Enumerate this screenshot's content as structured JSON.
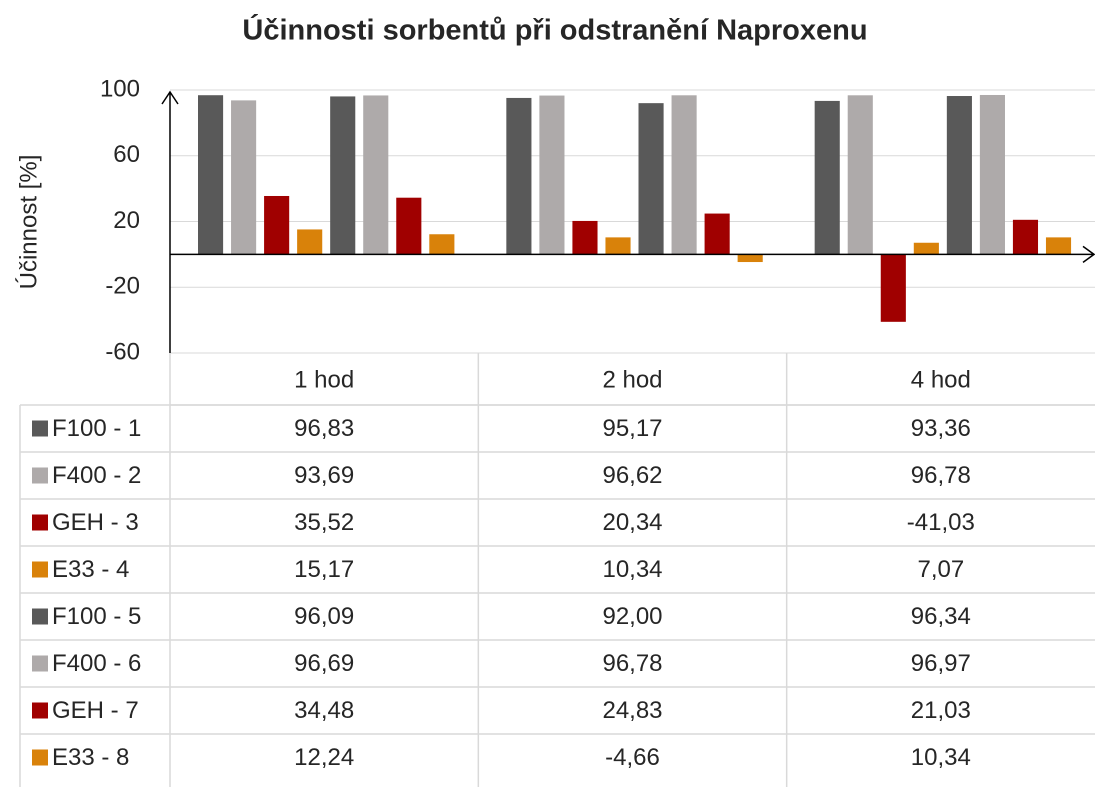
{
  "chart_data": {
    "type": "bar",
    "title": "Účinnosti sorbentů při odstranění Naproxenu",
    "y_label": "Účinnost [%]",
    "categories": [
      "1 hod",
      "2 hod",
      "4 hod"
    ],
    "ylim": [
      -60,
      100
    ],
    "yticks": [
      -60,
      -20,
      20,
      60,
      100
    ],
    "grid": true,
    "series": [
      {
        "name": "F100 - 1",
        "color": "#595959",
        "values": [
          96.83,
          95.17,
          93.36
        ],
        "value_labels": [
          "96,83",
          "95,17",
          "93,36"
        ]
      },
      {
        "name": "F400 - 2",
        "color": "#aeaaaa",
        "values": [
          93.69,
          96.62,
          96.78
        ],
        "value_labels": [
          "93,69",
          "96,62",
          "96,78"
        ]
      },
      {
        "name": "GEH - 3",
        "color": "#a00000",
        "values": [
          35.52,
          20.34,
          -41.03
        ],
        "value_labels": [
          "35,52",
          "20,34",
          "-41,03"
        ]
      },
      {
        "name": "E33 - 4",
        "color": "#d9820a",
        "values": [
          15.17,
          10.34,
          7.07
        ],
        "value_labels": [
          "15,17",
          "10,34",
          "7,07"
        ]
      },
      {
        "name": "F100 - 5",
        "color": "#595959",
        "values": [
          96.09,
          92.0,
          96.34
        ],
        "value_labels": [
          "96,09",
          "92,00",
          "96,34"
        ]
      },
      {
        "name": "F400 - 6",
        "color": "#aeaaaa",
        "values": [
          96.69,
          96.78,
          96.97
        ],
        "value_labels": [
          "96,69",
          "96,78",
          "96,97"
        ]
      },
      {
        "name": "GEH - 7",
        "color": "#a00000",
        "values": [
          34.48,
          24.83,
          21.03
        ],
        "value_labels": [
          "34,48",
          "24,83",
          "21,03"
        ]
      },
      {
        "name": "E33 - 8",
        "color": "#d9820a",
        "values": [
          12.24,
          -4.66,
          10.34
        ],
        "value_labels": [
          "12,24",
          "-4,66",
          "10,34"
        ]
      }
    ]
  }
}
